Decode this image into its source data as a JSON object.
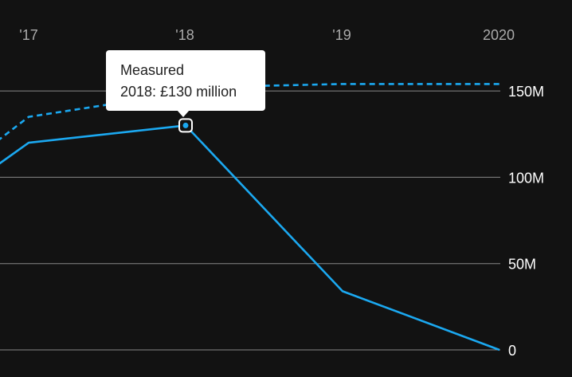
{
  "chart_data": {
    "type": "line",
    "x_tick_labels": [
      "'17",
      "'18",
      "'19",
      "2020"
    ],
    "y_tick_labels": [
      "0",
      "50M",
      "100M",
      "150M"
    ],
    "ylim": [
      0,
      150
    ],
    "grid": true,
    "series": [
      {
        "style": "dashed",
        "color": "#1ba8f0",
        "points": [
          {
            "x": 2016.8,
            "y": 121
          },
          {
            "x": 2017.0,
            "y": 135
          },
          {
            "x": 2017.5,
            "y": 142
          },
          {
            "x": 2018.5,
            "y": 153
          },
          {
            "x": 2019.0,
            "y": 154
          },
          {
            "x": 2020.0,
            "y": 154
          }
        ]
      },
      {
        "name": "Measured",
        "style": "solid",
        "color": "#1ba8f0",
        "points": [
          {
            "x": 2016.8,
            "y": 107
          },
          {
            "x": 2017.0,
            "y": 120
          },
          {
            "x": 2018.0,
            "y": 130
          },
          {
            "x": 2019.0,
            "y": 34
          },
          {
            "x": 2020.0,
            "y": 0
          }
        ]
      }
    ],
    "highlight": {
      "series": 1,
      "x": 2018.0,
      "y": 130
    }
  },
  "tooltip": {
    "title": "Measured",
    "value_text": "2018: £130 million"
  },
  "colors": {
    "background": "#121212",
    "grid": "#888888",
    "tick_text": "#ffffff",
    "x_tick_text": "#aaaaaa"
  }
}
